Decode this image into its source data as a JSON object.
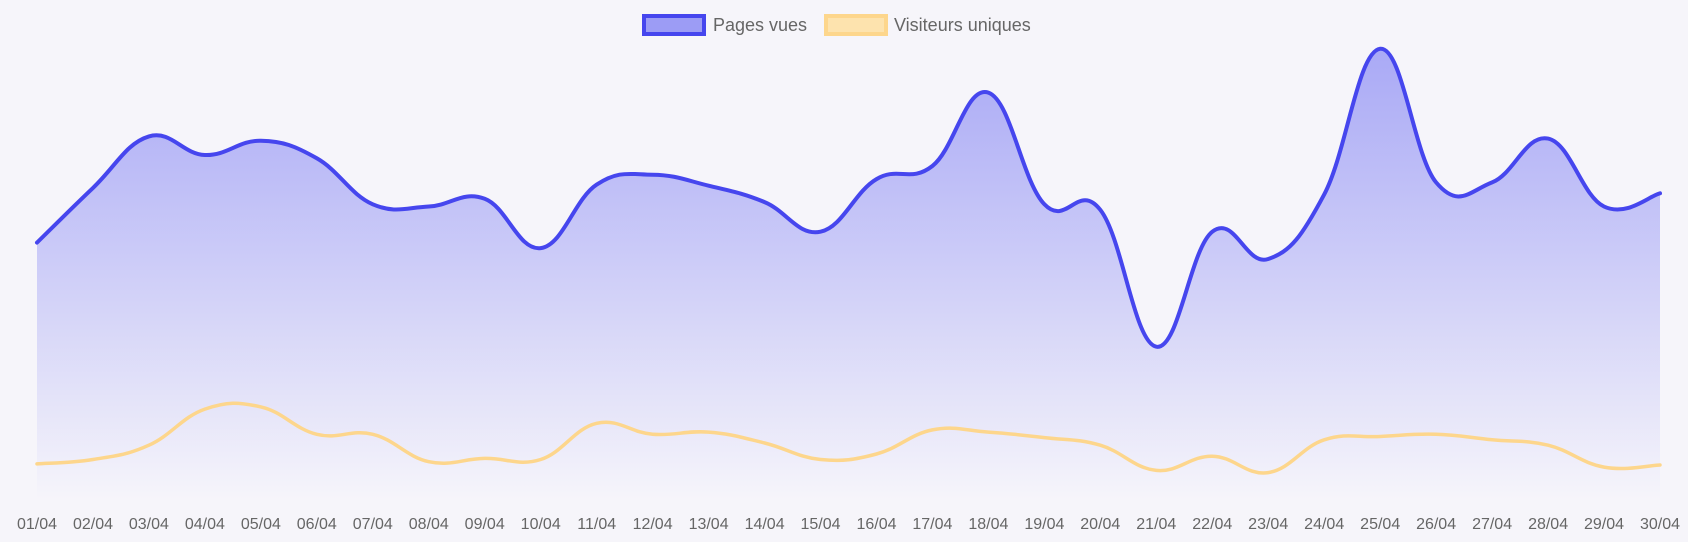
{
  "chart_data": {
    "type": "area",
    "title": "",
    "xlabel": "",
    "ylabel": "",
    "categories": [
      "01/04",
      "02/04",
      "03/04",
      "04/04",
      "05/04",
      "06/04",
      "07/04",
      "08/04",
      "09/04",
      "10/04",
      "11/04",
      "12/04",
      "13/04",
      "14/04",
      "15/04",
      "16/04",
      "17/04",
      "18/04",
      "19/04",
      "20/04",
      "21/04",
      "22/04",
      "23/04",
      "24/04",
      "25/04",
      "26/04",
      "27/04",
      "28/04",
      "29/04",
      "30/04"
    ],
    "ylim": [
      0,
      420
    ],
    "grid": false,
    "y_ticks_visible": false,
    "legend_position": "top-center",
    "series": [
      {
        "name": "Pages vues",
        "color": "#4646ee",
        "fill": "gradient",
        "values": [
          235,
          285,
          332,
          315,
          328,
          312,
          270,
          268,
          275,
          230,
          288,
          297,
          287,
          272,
          245,
          293,
          305,
          372,
          270,
          265,
          140,
          245,
          220,
          279,
          412,
          290,
          290,
          330,
          268,
          280
        ]
      },
      {
        "name": "Visiteurs uniques",
        "color": "#fdd68c",
        "fill": "none",
        "values": [
          33,
          37,
          50,
          83,
          85,
          60,
          60,
          35,
          38,
          37,
          70,
          60,
          62,
          52,
          37,
          42,
          64,
          62,
          57,
          50,
          27,
          40,
          25,
          55,
          58,
          60,
          55,
          50,
          30,
          32
        ]
      }
    ]
  }
}
